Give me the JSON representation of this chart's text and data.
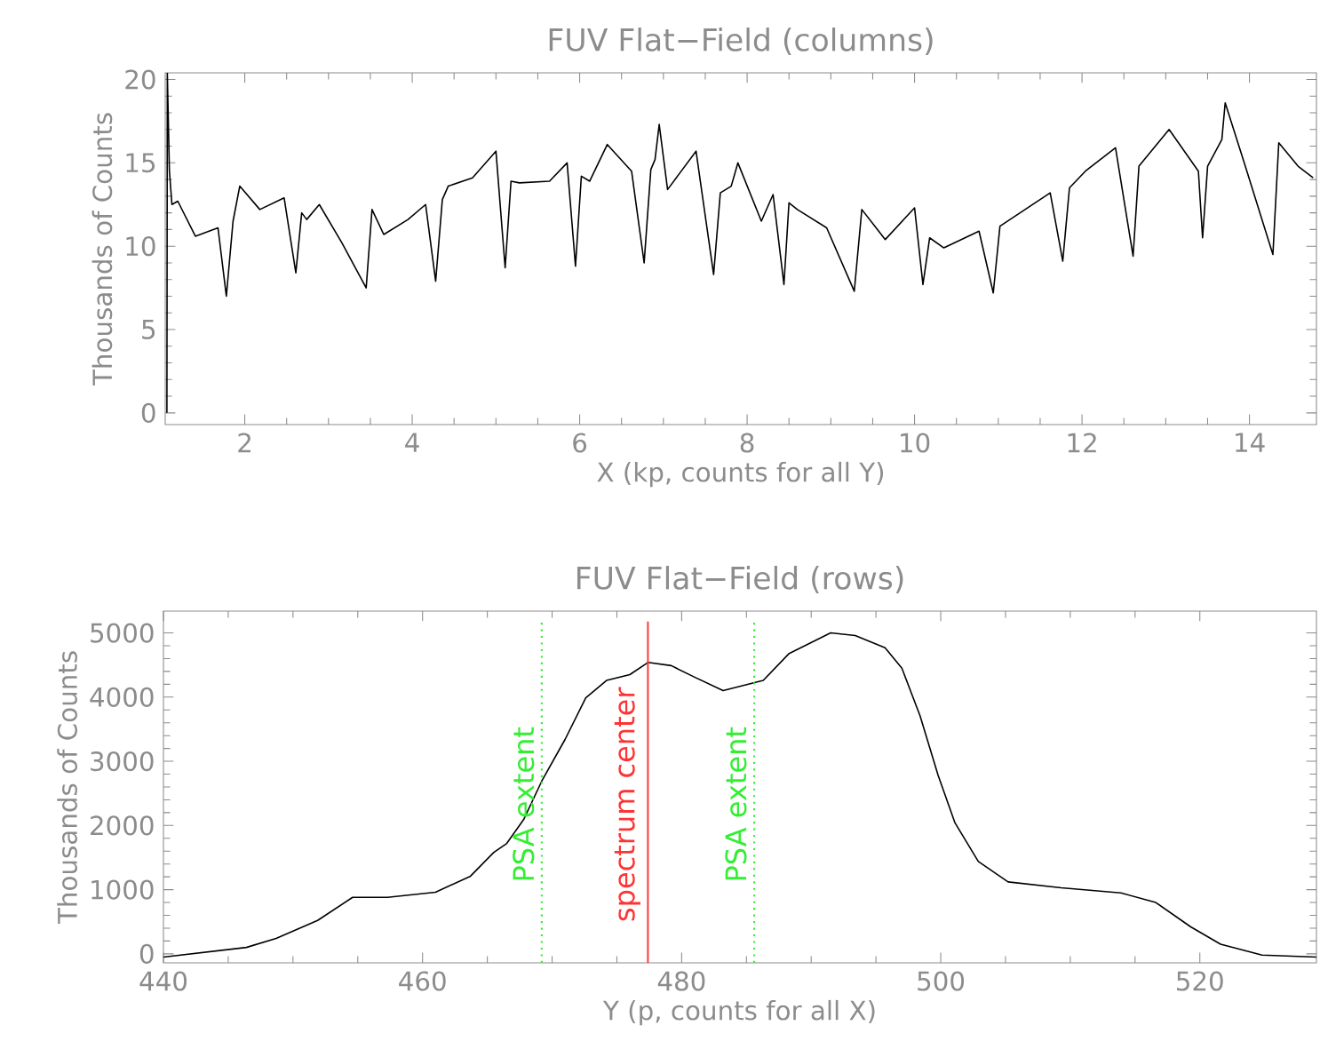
{
  "chart_data": [
    {
      "type": "line",
      "title": "FUV Flat−Field (columns)",
      "xlabel": "X (kp, counts for all Y)",
      "ylabel": "Thousands of Counts",
      "xlim": [
        1.05,
        14.8
      ],
      "ylim": [
        -0.7,
        20.4
      ],
      "xticks": [
        2,
        4,
        6,
        8,
        10,
        12,
        14
      ],
      "yticks": [
        0,
        5,
        10,
        15,
        20
      ],
      "series": [
        {
          "color": "#000000",
          "x": [
            1.07,
            1.075,
            1.1,
            1.13,
            1.2,
            1.41,
            1.68,
            1.78,
            1.86,
            1.94,
            2.18,
            2.47,
            2.61,
            2.68,
            2.74,
            2.89,
            3.16,
            3.45,
            3.52,
            3.66,
            3.95,
            4.16,
            4.28,
            4.36,
            4.43,
            4.72,
            5.0,
            5.11,
            5.18,
            5.28,
            5.64,
            5.85,
            5.95,
            6.02,
            6.12,
            6.33,
            6.62,
            6.77,
            6.85,
            6.9,
            6.95,
            7.05,
            7.39,
            7.6,
            7.68,
            7.81,
            7.89,
            8.17,
            8.31,
            8.44,
            8.5,
            8.6,
            8.95,
            9.28,
            9.37,
            9.65,
            10.0,
            10.1,
            10.18,
            10.35,
            10.77,
            10.94,
            11.02,
            11.2,
            11.62,
            11.77,
            11.85,
            12.04,
            12.4,
            12.61,
            12.68,
            13.04,
            13.39,
            13.44,
            13.5,
            13.67,
            13.71,
            13.95,
            14.28,
            14.35,
            14.58,
            14.76
          ],
          "values": [
            0,
            20.4,
            14.5,
            12.5,
            12.7,
            10.6,
            11.1,
            7.0,
            11.5,
            13.6,
            12.2,
            12.9,
            8.4,
            12.0,
            11.6,
            12.5,
            10.2,
            7.5,
            12.2,
            10.7,
            11.6,
            12.5,
            7.9,
            12.8,
            13.6,
            14.1,
            15.7,
            8.7,
            13.9,
            13.8,
            13.9,
            15.0,
            8.8,
            14.2,
            13.9,
            16.1,
            14.5,
            9.0,
            14.6,
            15.2,
            17.3,
            13.4,
            15.7,
            8.3,
            13.2,
            13.6,
            15.0,
            11.5,
            13.1,
            7.7,
            12.6,
            12.2,
            11.1,
            7.3,
            12.2,
            10.4,
            12.3,
            7.7,
            10.5,
            9.9,
            10.9,
            7.2,
            11.2,
            11.8,
            13.2,
            9.1,
            13.5,
            14.5,
            15.9,
            9.4,
            14.8,
            17.0,
            14.5,
            10.5,
            14.8,
            16.4,
            18.6,
            14.8,
            9.5,
            16.2,
            14.8,
            14.1
          ]
        }
      ]
    },
    {
      "type": "line",
      "title": "FUV Flat−Field (rows)",
      "xlabel": "Y (p, counts for all X)",
      "ylabel": "Thousands of Counts",
      "xlim": [
        440,
        529
      ],
      "ylim": [
        -140,
        5340
      ],
      "xticks": [
        440,
        460,
        480,
        500,
        520
      ],
      "yticks": [
        0,
        1000,
        2000,
        3000,
        4000,
        5000
      ],
      "series": [
        {
          "color": "#000000",
          "x": [
            440,
            446.4,
            448.7,
            451.9,
            454.6,
            457.3,
            461,
            463.7,
            465.5,
            466.5,
            467.8,
            469.2,
            471,
            472.6,
            474.2,
            476,
            477.4,
            479.2,
            481,
            483.2,
            486.3,
            488.3,
            491.5,
            493.4,
            495.7,
            497,
            498.4,
            499.8,
            501.1,
            502.9,
            505.2,
            509.3,
            513.9,
            516.6,
            519.3,
            521.6,
            524.8,
            529
          ],
          "values": [
            -50,
            100,
            240,
            520,
            880,
            880,
            960,
            1210,
            1580,
            1720,
            2090,
            2690,
            3340,
            3990,
            4260,
            4350,
            4540,
            4490,
            4310,
            4100,
            4260,
            4680,
            5000,
            4960,
            4770,
            4450,
            3710,
            2780,
            2040,
            1440,
            1120,
            1030,
            950,
            800,
            420,
            150,
            -20,
            -50
          ]
        }
      ],
      "ref_lines": [
        {
          "axis": "x",
          "value": 469.2,
          "label": "PSA extent",
          "color": "#33ee33",
          "line_style": "dotted"
        },
        {
          "axis": "x",
          "value": 477.4,
          "label": "spectrum center",
          "color": "#ff3333",
          "line_style": "solid"
        },
        {
          "axis": "x",
          "value": 485.6,
          "label": "PSA extent",
          "color": "#33ee33",
          "line_style": "dotted"
        }
      ]
    }
  ]
}
